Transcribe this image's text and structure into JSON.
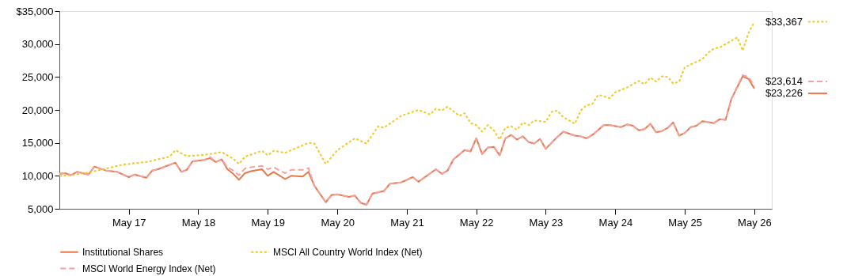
{
  "chart_data": {
    "type": "line",
    "x": [
      "2016-05",
      "2016-06",
      "2016-07",
      "2016-08",
      "2016-10",
      "2016-11",
      "2017-01",
      "2017-03",
      "2017-05",
      "2017-06",
      "2017-08",
      "2017-09",
      "2017-10",
      "2018-01",
      "2018-02",
      "2018-03",
      "2018-04",
      "2018-06",
      "2018-07",
      "2018-08",
      "2018-09",
      "2018-10",
      "2018-11",
      "2018-12",
      "2019-01",
      "2019-02",
      "2019-04",
      "2019-05",
      "2019-06",
      "2019-08",
      "2019-09",
      "2019-11",
      "2019-12",
      "2020-01",
      "2020-03",
      "2020-04",
      "2020-05",
      "2020-07",
      "2020-08",
      "2020-09",
      "2020-10",
      "2020-11",
      "2021-01",
      "2021-02",
      "2021-04",
      "2021-06",
      "2021-07",
      "2021-10",
      "2021-11",
      "2021-12",
      "2022-01",
      "2022-03",
      "2022-04",
      "2022-05",
      "2022-06",
      "2022-07",
      "2022-08",
      "2022-09",
      "2022-10",
      "2022-11",
      "2022-12",
      "2023-01",
      "2023-02",
      "2023-03",
      "2023-04",
      "2023-05",
      "2023-07",
      "2023-08",
      "2023-10",
      "2023-11",
      "2023-12",
      "2024-01",
      "2024-03",
      "2024-04",
      "2024-06",
      "2024-07",
      "2024-08",
      "2024-09",
      "2024-10",
      "2024-11",
      "2024-12",
      "2025-01",
      "2025-02",
      "2025-03",
      "2025-04",
      "2025-05",
      "2025-06",
      "2025-07",
      "2025-08",
      "2025-10",
      "2025-11",
      "2025-12",
      "2026-01",
      "2026-03",
      "2026-04",
      "2026-05"
    ],
    "series": [
      {
        "name": "Institutional Shares",
        "color": "#e8794a",
        "line_style": "solid",
        "values": [
          10300,
          10400,
          10100,
          10600,
          10200,
          11400,
          10800,
          10600,
          9800,
          10200,
          9700,
          10800,
          11000,
          12000,
          10600,
          10900,
          12200,
          12400,
          12700,
          12100,
          12500,
          11000,
          10300,
          9400,
          10400,
          10700,
          11000,
          10000,
          10600,
          9500,
          10000,
          9900,
          10600,
          8500,
          6000,
          7100,
          7200,
          6800,
          7000,
          5900,
          5600,
          7300,
          7700,
          8800,
          9000,
          9800,
          9100,
          11000,
          10300,
          10800,
          12500,
          13900,
          13700,
          15700,
          13300,
          14300,
          14400,
          13100,
          15700,
          16200,
          15500,
          16000,
          15100,
          14900,
          15600,
          14100,
          15900,
          16700,
          16100,
          16000,
          15700,
          16200,
          17700,
          17700,
          17400,
          17800,
          17600,
          16900,
          17100,
          17900,
          16600,
          16800,
          17300,
          18100,
          16100,
          16500,
          17400,
          17600,
          18300,
          18000,
          18600,
          18500,
          21700,
          25100,
          24700,
          23226
        ]
      },
      {
        "name": "MSCI All Country World Index (Net)",
        "color": "#f2c824",
        "line_style": "dotted",
        "x": [
          "2016-05",
          "2016-07",
          "2016-10",
          "2017-01",
          "2017-04",
          "2017-08",
          "2017-12",
          "2018-01",
          "2018-03",
          "2018-05",
          "2018-07",
          "2018-09",
          "2018-11",
          "2018-12",
          "2019-01",
          "2019-04",
          "2019-05",
          "2019-06",
          "2019-08",
          "2019-12",
          "2020-01",
          "2020-03",
          "2020-05",
          "2020-08",
          "2020-10",
          "2020-12",
          "2021-01",
          "2021-04",
          "2021-06",
          "2021-07",
          "2021-09",
          "2021-10",
          "2021-11",
          "2021-12",
          "2022-02",
          "2022-03",
          "2022-04",
          "2022-05",
          "2022-06",
          "2022-07",
          "2022-08",
          "2022-09",
          "2022-10",
          "2022-11",
          "2022-12",
          "2023-01",
          "2023-02",
          "2023-03",
          "2023-05",
          "2023-06",
          "2023-07",
          "2023-08",
          "2023-10",
          "2023-11",
          "2023-12",
          "2024-01",
          "2024-02",
          "2024-04",
          "2024-05",
          "2024-07",
          "2024-09",
          "2024-10",
          "2024-11",
          "2024-12",
          "2025-01",
          "2025-02",
          "2025-03",
          "2025-04",
          "2025-05",
          "2025-06",
          "2025-08",
          "2025-09",
          "2025-10",
          "2025-11",
          "2026-01",
          "2026-02",
          "2026-03",
          "2026-04",
          "2026-05"
        ],
        "values": [
          10000,
          10100,
          10500,
          11100,
          11700,
          12100,
          12900,
          13900,
          13000,
          13100,
          13300,
          13600,
          12600,
          11800,
          12900,
          13800,
          13100,
          13800,
          13500,
          15000,
          14900,
          11800,
          13900,
          15700,
          14900,
          17500,
          17300,
          19100,
          19700,
          20000,
          19300,
          20200,
          19900,
          20500,
          19100,
          19500,
          18000,
          17700,
          16700,
          17700,
          16900,
          15500,
          17300,
          17500,
          17000,
          18100,
          17700,
          18400,
          18200,
          19700,
          19900,
          18900,
          17900,
          19900,
          20700,
          20900,
          22300,
          21800,
          22700,
          23400,
          24400,
          23900,
          24900,
          24300,
          25100,
          25000,
          24000,
          24300,
          26500,
          26900,
          27700,
          28700,
          29300,
          29500,
          30500,
          31000,
          29000,
          31700,
          33367
        ]
      },
      {
        "name": "MSCI World Energy Index (Net)",
        "color": "#f2a3a0",
        "line_style": "dashed",
        "values": [
          10300,
          10400,
          10100,
          10600,
          10200,
          11400,
          10800,
          10600,
          9800,
          10200,
          9700,
          10800,
          11000,
          12000,
          10600,
          10900,
          12200,
          12400,
          12900,
          12100,
          12500,
          11300,
          10800,
          10100,
          11100,
          11300,
          11500,
          11000,
          11300,
          10400,
          10900,
          10900,
          11200,
          8500,
          6000,
          7100,
          7200,
          6800,
          7000,
          5900,
          5600,
          7300,
          7700,
          8800,
          9000,
          9800,
          9100,
          11000,
          10300,
          10800,
          12500,
          13900,
          13700,
          15700,
          13300,
          14300,
          14400,
          13100,
          15700,
          16200,
          15500,
          16000,
          15100,
          14900,
          15600,
          14100,
          15900,
          16700,
          16100,
          16000,
          15700,
          16200,
          17700,
          17700,
          17400,
          17800,
          17600,
          16900,
          17100,
          17900,
          16600,
          16800,
          17300,
          18100,
          16100,
          16500,
          17400,
          17600,
          18300,
          18000,
          18600,
          18500,
          21700,
          25300,
          25000,
          23614
        ]
      }
    ],
    "xlim": [
      "2016-05",
      "2026-08"
    ],
    "xticks": [
      {
        "value": "2017-05",
        "label": "May 17"
      },
      {
        "value": "2018-05",
        "label": "May 18"
      },
      {
        "value": "2019-05",
        "label": "May 19"
      },
      {
        "value": "2020-05",
        "label": "May 20"
      },
      {
        "value": "2021-05",
        "label": "May 21"
      },
      {
        "value": "2022-05",
        "label": "May 22"
      },
      {
        "value": "2023-05",
        "label": "May 23"
      },
      {
        "value": "2024-05",
        "label": "May 24"
      },
      {
        "value": "2025-05",
        "label": "May 25"
      },
      {
        "value": "2026-05",
        "label": "May 26"
      }
    ],
    "ylim": [
      5000,
      35000
    ],
    "yticks": [
      {
        "value": 5000,
        "label": "5,000"
      },
      {
        "value": 10000,
        "label": "10,000"
      },
      {
        "value": 15000,
        "label": "15,000"
      },
      {
        "value": 20000,
        "label": "20,000"
      },
      {
        "value": 25000,
        "label": "25,000"
      },
      {
        "value": 30000,
        "label": "30,000"
      },
      {
        "value": 35000,
        "label": "$35,000"
      }
    ],
    "annotations": [
      {
        "text": "$33,367",
        "x": "2026-05",
        "y": 33367
      },
      {
        "text": "$23,614",
        "x": "2026-05",
        "y": 23614
      },
      {
        "text": "$23,226",
        "x": "2026-05",
        "y": 23226
      }
    ],
    "legend": "bottom",
    "grid": false
  }
}
